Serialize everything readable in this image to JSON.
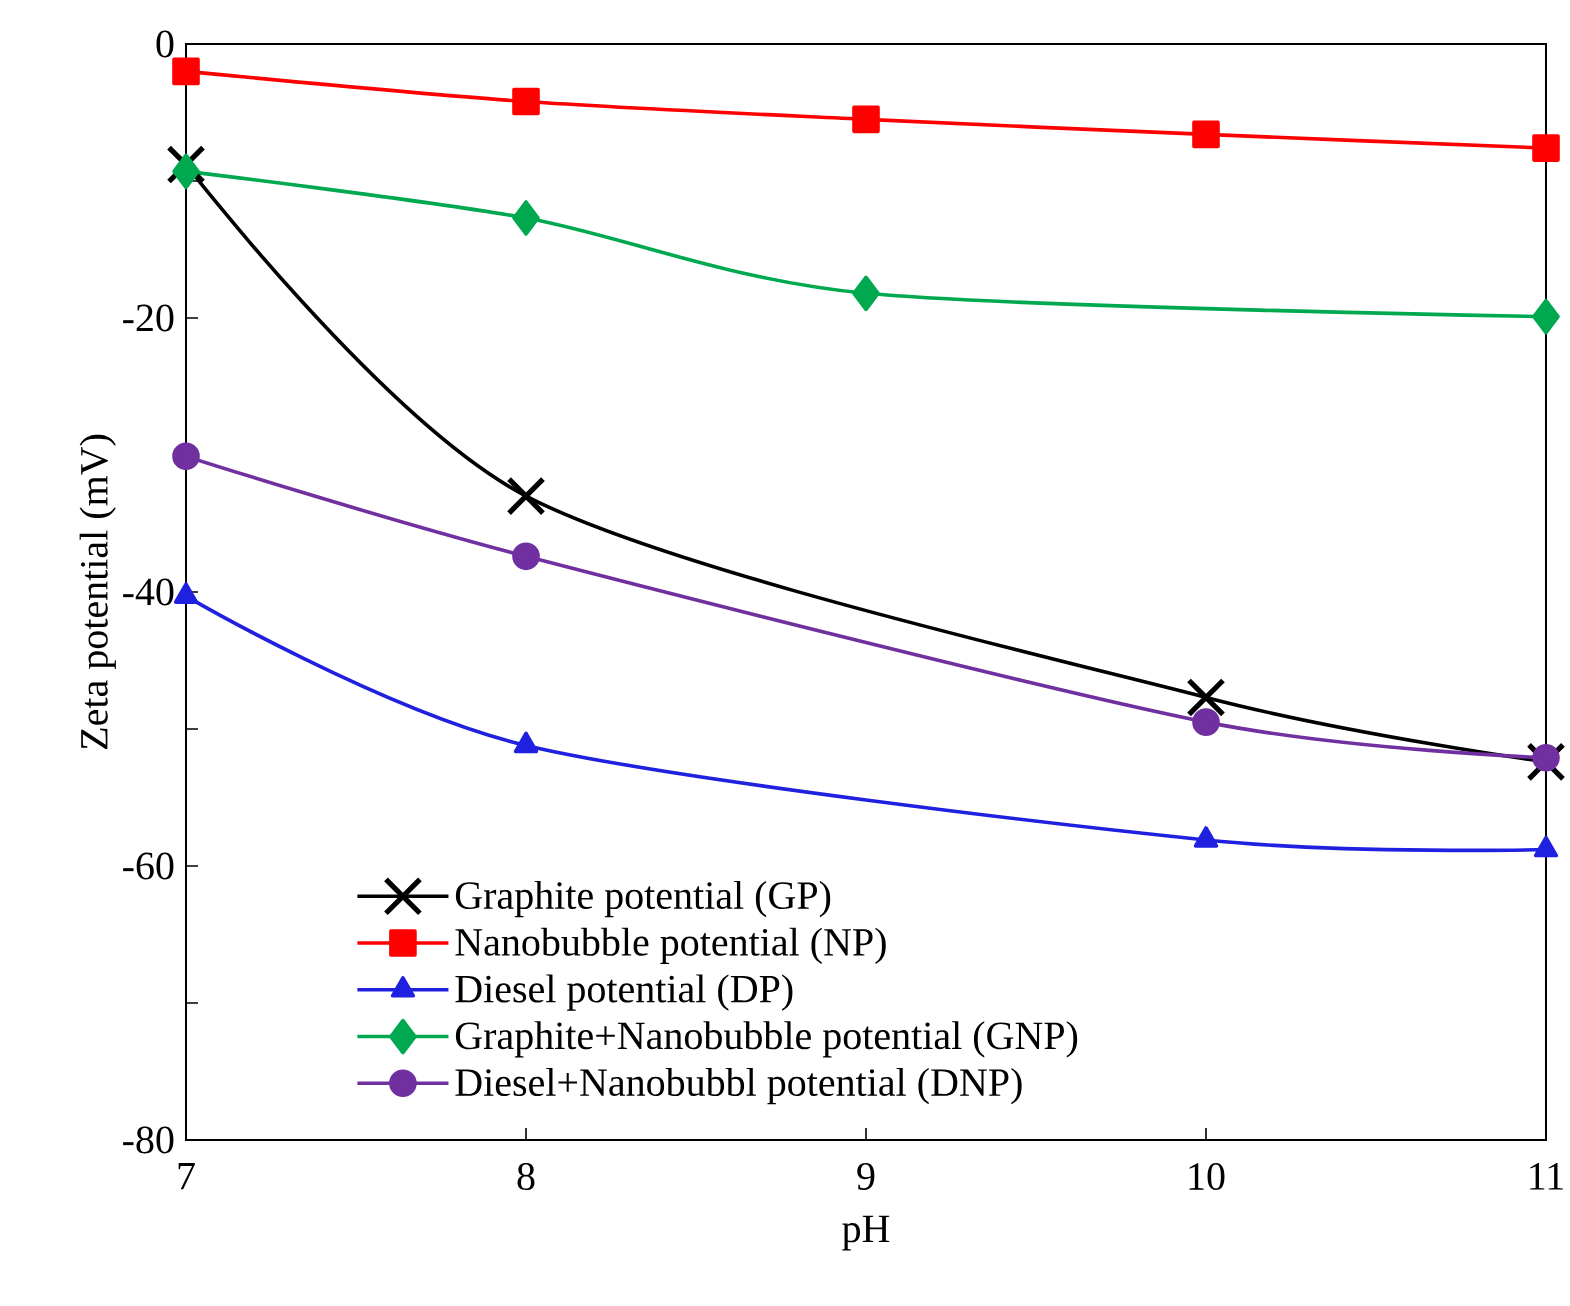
{
  "chart_data": {
    "type": "line",
    "xlabel": "pH",
    "ylabel": "Zeta potential  (mV)",
    "xlim": [
      7,
      11
    ],
    "xticks": [
      7,
      8,
      9,
      10,
      11
    ],
    "ylim": [
      -80,
      0
    ],
    "yticks": [
      -80,
      -60,
      -40,
      -20,
      0
    ],
    "grid": false,
    "legend": "bottom left",
    "line_style": "solid",
    "series": [
      {
        "name": "Graphite potential (GP)",
        "color": "#000000",
        "marker": "cross",
        "x": [
          7,
          8,
          10,
          11
        ],
        "values": [
          -8.8,
          -33.0,
          -47.7,
          -52.4
        ]
      },
      {
        "name": "Nanobubble potential (NP)",
        "color": "#ff0000",
        "marker": "square",
        "x": [
          7,
          8,
          9,
          10,
          11
        ],
        "values": [
          -2.0,
          -4.2,
          -5.5,
          -6.6,
          -7.6
        ]
      },
      {
        "name": "Diesel potential (DP)",
        "color": "#2020e0",
        "marker": "triangle",
        "x": [
          7,
          8,
          10,
          11
        ],
        "values": [
          -40.3,
          -51.2,
          -58.1,
          -58.8
        ]
      },
      {
        "name": "Graphite+Nanobubble potential (GNP)",
        "color": "#00a850",
        "marker": "diamond",
        "x": [
          7,
          8,
          9,
          11
        ],
        "values": [
          -9.3,
          -12.7,
          -18.2,
          -19.9
        ]
      },
      {
        "name": "Diesel+Nanobubbl potential (DNP)",
        "color": "#7030a0",
        "marker": "circle",
        "x": [
          7,
          8,
          10,
          11
        ],
        "values": [
          -30.1,
          -37.4,
          -49.5,
          -52.1
        ]
      }
    ]
  }
}
